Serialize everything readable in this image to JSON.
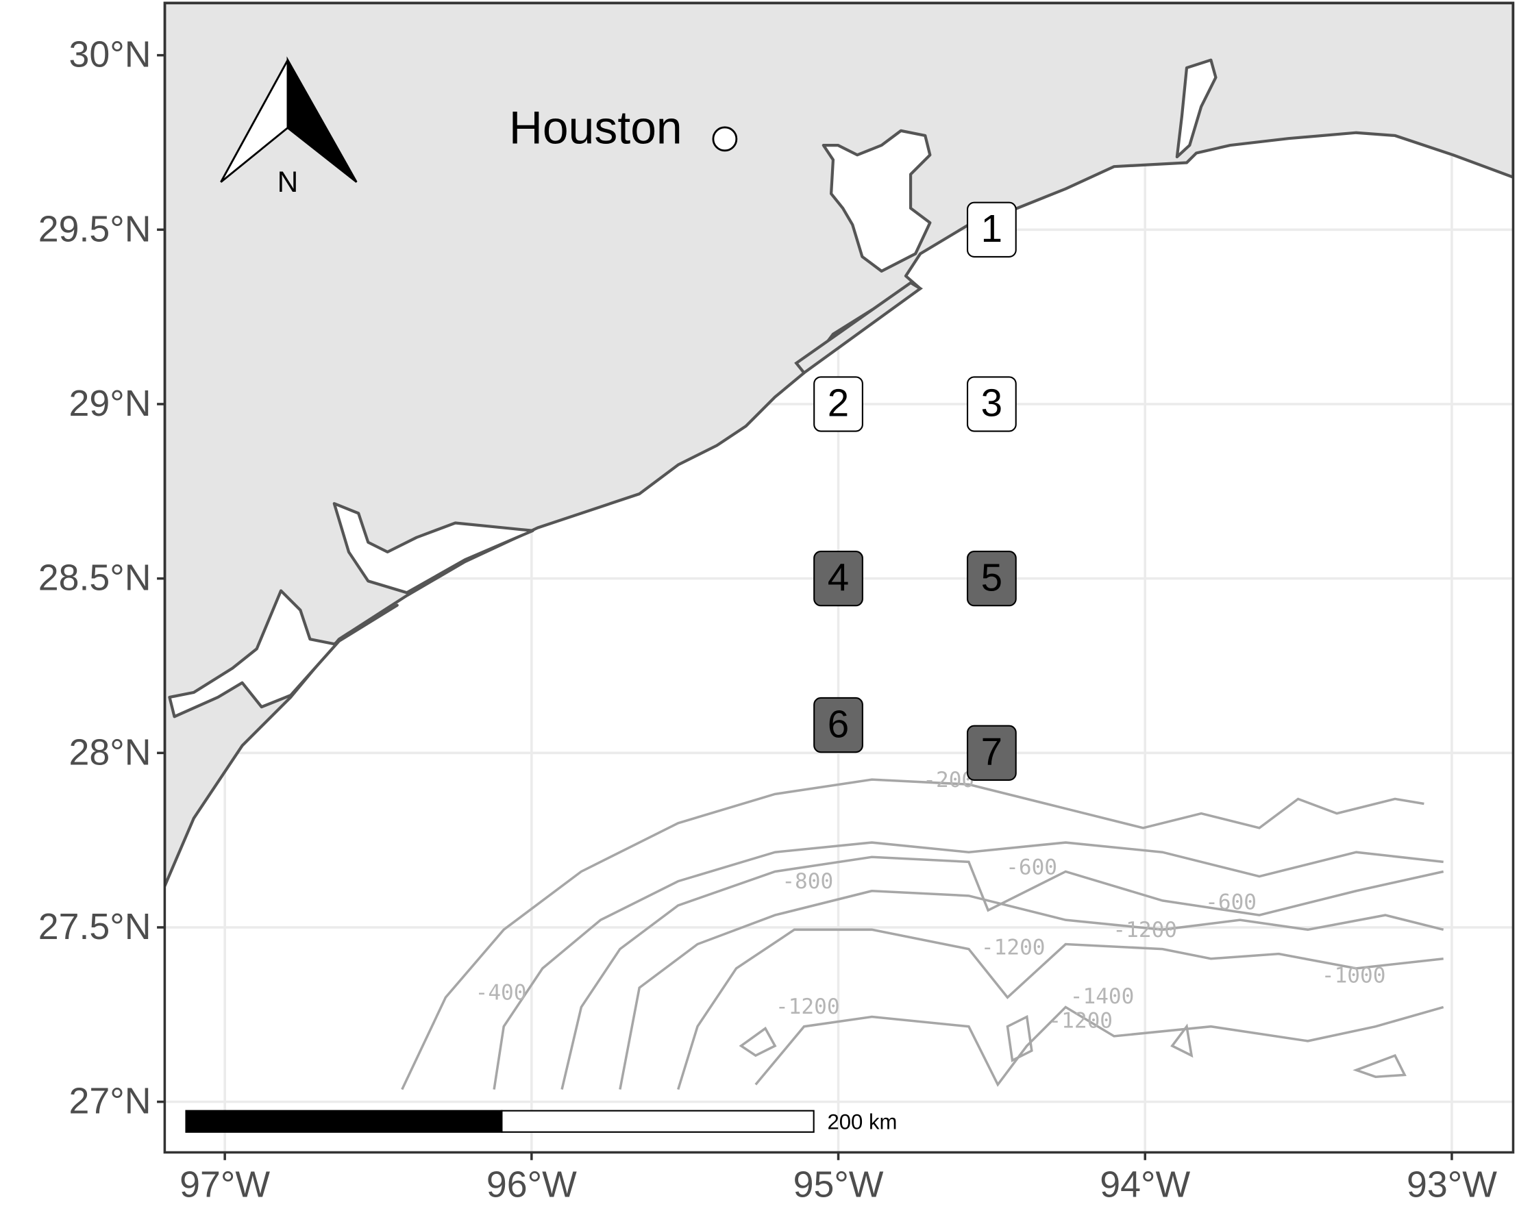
{
  "chart_data": {
    "type": "map",
    "xlim": [
      -97.196,
      -92.8
    ],
    "ylim": [
      26.855,
      30.15
    ],
    "xticks": [
      {
        "value": -97,
        "label": "97°W"
      },
      {
        "value": -96,
        "label": "96°W"
      },
      {
        "value": -95,
        "label": "95°W"
      },
      {
        "value": -94,
        "label": "94°W"
      },
      {
        "value": -93,
        "label": "93°W"
      }
    ],
    "yticks": [
      {
        "value": 27,
        "label": "27°N"
      },
      {
        "value": 27.5,
        "label": "27.5°N"
      },
      {
        "value": 28,
        "label": "28°N"
      },
      {
        "value": 28.5,
        "label": "28.5°N"
      },
      {
        "value": 29,
        "label": "29°N"
      },
      {
        "value": 29.5,
        "label": "29.5°N"
      },
      {
        "value": 30,
        "label": "30°N"
      }
    ],
    "grid": true,
    "city": {
      "label": "Houston",
      "x": -95.37,
      "y": 29.76
    },
    "stations": [
      {
        "label": "1",
        "x": -94.5,
        "y": 29.5,
        "fill": "#ffffff"
      },
      {
        "label": "2",
        "x": -95.0,
        "y": 29.0,
        "fill": "#ffffff"
      },
      {
        "label": "3",
        "x": -94.5,
        "y": 29.0,
        "fill": "#ffffff"
      },
      {
        "label": "4",
        "x": -95.0,
        "y": 28.5,
        "fill": "#666666"
      },
      {
        "label": "5",
        "x": -94.5,
        "y": 28.5,
        "fill": "#666666"
      },
      {
        "label": "6",
        "x": -95.0,
        "y": 28.08,
        "fill": "#666666"
      },
      {
        "label": "7",
        "x": -94.5,
        "y": 28.0,
        "fill": "#666666"
      }
    ],
    "contour_labels": [
      {
        "label": -200,
        "x": -94.64,
        "y": 27.92
      },
      {
        "label": -600,
        "x": -94.37,
        "y": 27.67
      },
      {
        "label": -800,
        "x": -95.1,
        "y": 27.63
      },
      {
        "label": -600,
        "x": -93.72,
        "y": 27.57
      },
      {
        "label": -1200,
        "x": -94.0,
        "y": 27.49
      },
      {
        "label": -1200,
        "x": -94.43,
        "y": 27.44
      },
      {
        "label": -400,
        "x": -96.1,
        "y": 27.31
      },
      {
        "label": -1000,
        "x": -93.32,
        "y": 27.36
      },
      {
        "label": -1400,
        "x": -94.14,
        "y": 27.3
      },
      {
        "label": -1200,
        "x": -95.1,
        "y": 27.27
      },
      {
        "label": -1200,
        "x": -94.21,
        "y": 27.23
      }
    ],
    "scale_bar_label": "200 km",
    "north_label": "N"
  }
}
